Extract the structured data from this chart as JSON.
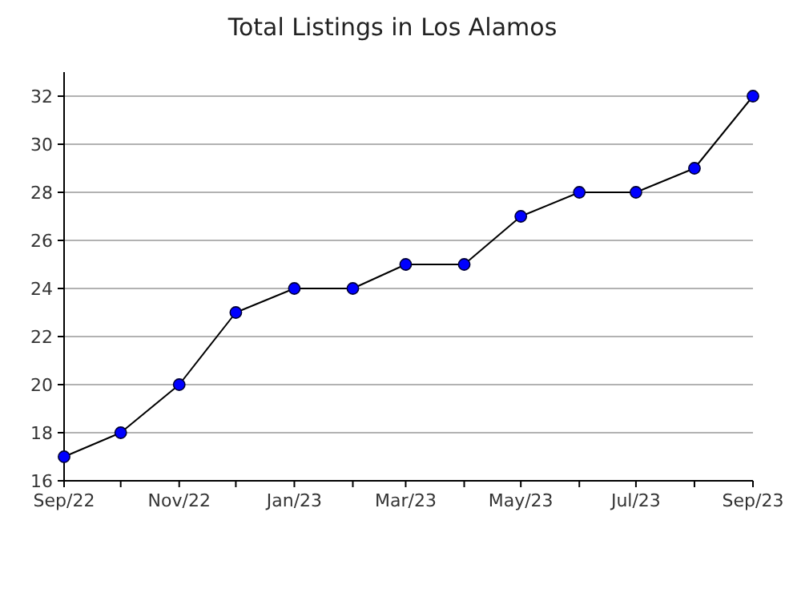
{
  "chart_data": {
    "type": "line",
    "title": "Total Listings in Los Alamos",
    "x": [
      "2022-09",
      "2022-10",
      "2022-11",
      "2022-12",
      "2023-01",
      "2023-02",
      "2023-03",
      "2023-04",
      "2023-05",
      "2023-06",
      "2023-07",
      "2023-08",
      "2023-09"
    ],
    "series": [
      {
        "color": "#0000ff",
        "values": [
          17,
          18,
          20,
          23,
          24,
          24,
          25,
          25,
          27,
          28,
          28,
          29,
          32
        ]
      }
    ],
    "xlim": [
      "2022-09",
      "2023-09"
    ],
    "xticks": [
      {
        "value": "2022-09",
        "label": "Sep/22"
      },
      {
        "value": "2022-10",
        "label": null
      },
      {
        "value": "2022-11",
        "label": "Nov/22"
      },
      {
        "value": "2022-12",
        "label": null
      },
      {
        "value": "2023-01",
        "label": "Jan/23"
      },
      {
        "value": "2023-02",
        "label": null
      },
      {
        "value": "2023-03",
        "label": "Mar/23"
      },
      {
        "value": "2023-04",
        "label": null
      },
      {
        "value": "2023-05",
        "label": "May/23"
      },
      {
        "value": "2023-06",
        "label": null
      },
      {
        "value": "2023-07",
        "label": "Jul/23"
      },
      {
        "value": "2023-08",
        "label": null
      },
      {
        "value": "2023-09",
        "label": "Sep/23"
      }
    ],
    "ylim": [
      16,
      33
    ],
    "yticks": [
      16,
      18,
      20,
      22,
      24,
      26,
      28,
      30,
      32
    ],
    "grid": "y",
    "marker": "circle",
    "line_style": "solid"
  }
}
